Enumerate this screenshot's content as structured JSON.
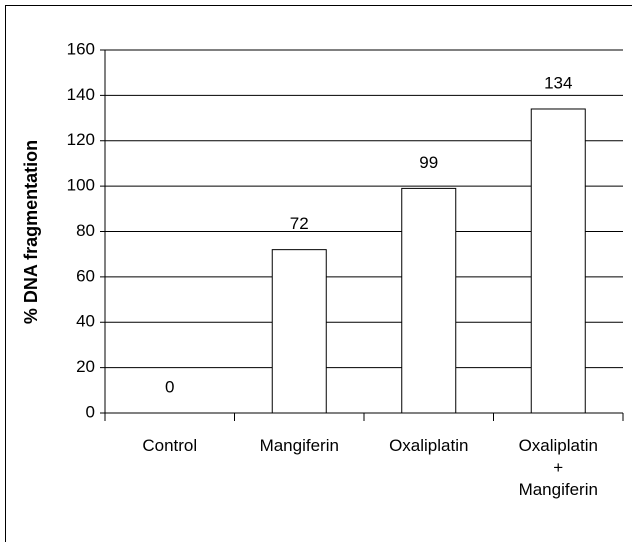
{
  "chart_data": {
    "type": "bar",
    "y_label": "% DNA fragmentation",
    "categories": [
      "Control",
      "Mangiferin",
      "Oxaliplatin",
      "Oxaliplatin\n+\nMangiferin"
    ],
    "values": [
      0,
      72,
      99,
      134
    ],
    "color": "#ffffff",
    "ylim": [
      0,
      160
    ],
    "yticks": [
      0,
      20,
      40,
      60,
      80,
      100,
      120,
      140,
      160
    ],
    "grid": true
  }
}
